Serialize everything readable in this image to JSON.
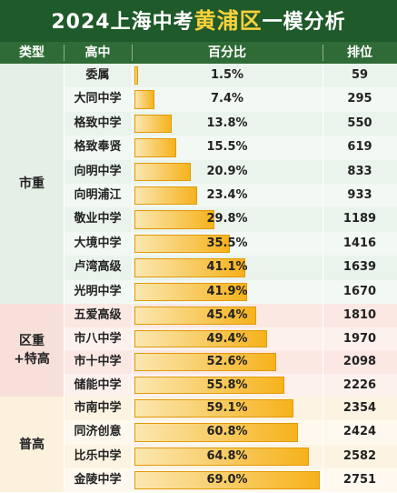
{
  "title": {
    "prefix": "2024上海中考",
    "highlight": "黄浦区",
    "suffix": "一模分析"
  },
  "header": {
    "type": "类型",
    "school": "高中",
    "pct": "百分比",
    "rank": "排位"
  },
  "groups": [
    {
      "label_line1": "市重",
      "label_line2": ""
    },
    {
      "label_line1": "区重",
      "label_line2": "+特高"
    },
    {
      "label_line1": "普高",
      "label_line2": ""
    }
  ],
  "rows": [
    {
      "school": "委属",
      "pct": "1.5%",
      "value": 1.5,
      "rank": "59"
    },
    {
      "school": "大同中学",
      "pct": "7.4%",
      "value": 7.4,
      "rank": "295"
    },
    {
      "school": "格致中学",
      "pct": "13.8%",
      "value": 13.8,
      "rank": "550"
    },
    {
      "school": "格致奉贤",
      "pct": "15.5%",
      "value": 15.5,
      "rank": "619"
    },
    {
      "school": "向明中学",
      "pct": "20.9%",
      "value": 20.9,
      "rank": "833"
    },
    {
      "school": "向明浦江",
      "pct": "23.4%",
      "value": 23.4,
      "rank": "933"
    },
    {
      "school": "敬业中学",
      "pct": "29.8%",
      "value": 29.8,
      "rank": "1189"
    },
    {
      "school": "大境中学",
      "pct": "35.5%",
      "value": 35.5,
      "rank": "1416"
    },
    {
      "school": "卢湾高级",
      "pct": "41.1%",
      "value": 41.1,
      "rank": "1639"
    },
    {
      "school": "光明中学",
      "pct": "41.9%",
      "value": 41.9,
      "rank": "1670"
    },
    {
      "school": "五爱高级",
      "pct": "45.4%",
      "value": 45.4,
      "rank": "1810"
    },
    {
      "school": "市八中学",
      "pct": "49.4%",
      "value": 49.4,
      "rank": "1970"
    },
    {
      "school": "市十中学",
      "pct": "52.6%",
      "value": 52.6,
      "rank": "2098"
    },
    {
      "school": "储能中学",
      "pct": "55.8%",
      "value": 55.8,
      "rank": "2226"
    },
    {
      "school": "市南中学",
      "pct": "59.1%",
      "value": 59.1,
      "rank": "2354"
    },
    {
      "school": "同济创意",
      "pct": "60.8%",
      "value": 60.8,
      "rank": "2424"
    },
    {
      "school": "比乐中学",
      "pct": "64.8%",
      "value": 64.8,
      "rank": "2582"
    },
    {
      "school": "金陵中学",
      "pct": "69.0%",
      "value": 69.0,
      "rank": "2751"
    }
  ],
  "colors": {
    "title_bg": "#1f5a2a",
    "title_highlight": "#ffd23a",
    "header_bg": "#2f6b36",
    "bar": "#f6b21c"
  }
}
